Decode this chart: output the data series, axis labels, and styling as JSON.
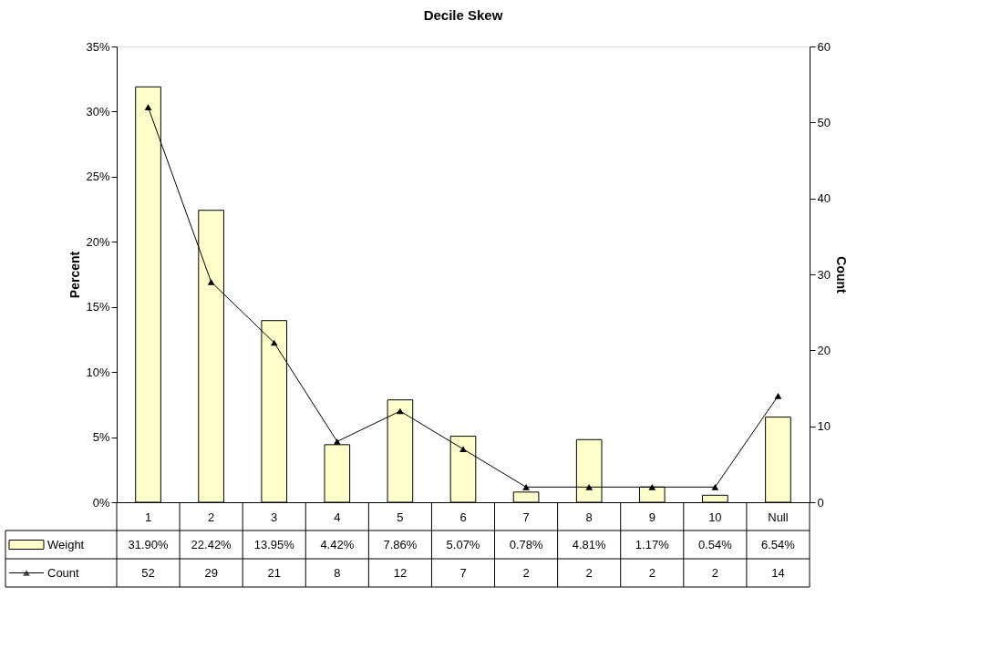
{
  "chart_data": {
    "type": "bar",
    "title": "Decile Skew",
    "ylabel": "Percent",
    "y2label": "Count",
    "categories": [
      "1",
      "2",
      "3",
      "4",
      "5",
      "6",
      "7",
      "8",
      "9",
      "10",
      "Null"
    ],
    "series": [
      {
        "name": "Weight",
        "color": "#ffffcc",
        "values": [
          31.9,
          22.42,
          13.95,
          4.42,
          7.86,
          5.07,
          0.78,
          4.81,
          1.17,
          0.54,
          6.54
        ],
        "value_labels": [
          "31.90%",
          "22.42%",
          "13.95%",
          "4.42%",
          "7.86%",
          "5.07%",
          "0.78%",
          "4.81%",
          "1.17%",
          "0.54%",
          "6.54%"
        ]
      },
      {
        "name": "Count",
        "type": "line",
        "axis": "y2",
        "color": "#000000",
        "values": [
          52,
          29,
          21,
          8,
          12,
          7,
          2,
          2,
          2,
          2,
          14
        ],
        "value_labels": [
          "52",
          "29",
          "21",
          "8",
          "12",
          "7",
          "2",
          "2",
          "2",
          "2",
          "14"
        ]
      }
    ],
    "ylim": [
      0,
      35
    ],
    "yticks": [
      {
        "value": 0,
        "label": "0%"
      },
      {
        "value": 5,
        "label": "5%"
      },
      {
        "value": 10,
        "label": "10%"
      },
      {
        "value": 15,
        "label": "15%"
      },
      {
        "value": 20,
        "label": "20%"
      },
      {
        "value": 25,
        "label": "25%"
      },
      {
        "value": 30,
        "label": "30%"
      },
      {
        "value": 35,
        "label": "35%"
      }
    ],
    "y2lim": [
      0,
      60
    ],
    "y2ticks": [
      0,
      10,
      20,
      30,
      40,
      50,
      60
    ],
    "grid": false,
    "legend": "bottom",
    "marker": "triangle",
    "line_style": "solid"
  }
}
